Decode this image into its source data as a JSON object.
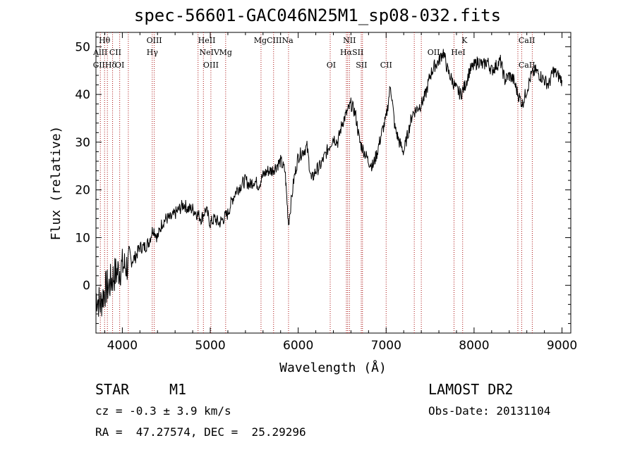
{
  "chart_data": {
    "type": "line",
    "title": "spec-56601-GAC046N25M1_sp08-032.fits",
    "xlabel": "Wavelength (Å)",
    "ylabel": "Flux (relative)",
    "xlim": [
      3700,
      9100
    ],
    "ylim": [
      -10,
      53
    ],
    "x_ticks": [
      4000,
      5000,
      6000,
      7000,
      8000,
      9000
    ],
    "y_ticks": [
      0,
      10,
      20,
      30,
      40,
      50
    ],
    "grid": false,
    "series": [
      {
        "x": [
          3700,
          3750,
          3800,
          3850,
          3900,
          3950,
          4000,
          4050,
          4100,
          4150,
          4200,
          4250,
          4300,
          4350,
          4400,
          4450,
          4500,
          4550,
          4600,
          4650,
          4700,
          4750,
          4800,
          4850,
          4900,
          4950,
          5000,
          5050,
          5100,
          5150,
          5200,
          5250,
          5300,
          5350,
          5400,
          5450,
          5500,
          5550,
          5600,
          5650,
          5700,
          5750,
          5800,
          5850,
          5890,
          5950,
          6000,
          6050,
          6100,
          6150,
          6200,
          6250,
          6300,
          6350,
          6400,
          6450,
          6500,
          6550,
          6600,
          6650,
          6700,
          6750,
          6800,
          6850,
          6900,
          6950,
          7000,
          7050,
          7100,
          7150,
          7200,
          7250,
          7300,
          7350,
          7400,
          7450,
          7500,
          7550,
          7600,
          7650,
          7700,
          7750,
          7800,
          7850,
          7900,
          7950,
          8000,
          8050,
          8100,
          8150,
          8200,
          8250,
          8300,
          8350,
          8400,
          8450,
          8500,
          8550,
          8600,
          8650,
          8700,
          8750,
          8800,
          8850,
          8900,
          8950,
          9000
        ],
        "y": [
          -2,
          -4,
          -1,
          0,
          2,
          3,
          4,
          4,
          5,
          6,
          8,
          8,
          9,
          12,
          10,
          13,
          14,
          14,
          15,
          16,
          17,
          16,
          16,
          15,
          14,
          16,
          13,
          14,
          13,
          14,
          15,
          18,
          20,
          21,
          22,
          21,
          22,
          21,
          23,
          24,
          24,
          25,
          26,
          24,
          13,
          22,
          27,
          28,
          29,
          22,
          24,
          25,
          27,
          29,
          31,
          30,
          34,
          36,
          38,
          36,
          30,
          28,
          26,
          25,
          28,
          32,
          35,
          42,
          33,
          30,
          28,
          32,
          36,
          37,
          38,
          40,
          44,
          46,
          47,
          49,
          45,
          43,
          41,
          40,
          42,
          45,
          46,
          47,
          46,
          47,
          45,
          46,
          47,
          43,
          44,
          43,
          40,
          38,
          41,
          44,
          45,
          44,
          43,
          42,
          45,
          44,
          43
        ]
      }
    ],
    "lines": [
      {
        "label": "Hθ",
        "x": 3798,
        "row": 1
      },
      {
        "label": "AlII",
        "x": 3750,
        "row": 2
      },
      {
        "label": "CII",
        "x": 3920,
        "row": 2
      },
      {
        "label": "OIII",
        "x": 4363,
        "row": 1
      },
      {
        "label": "Hγ",
        "x": 4341,
        "row": 2
      },
      {
        "label": "HeII",
        "x": 4960,
        "row": 1
      },
      {
        "label": "NeIV",
        "x": 4990,
        "row": 2
      },
      {
        "label": "Mg",
        "x": 5175,
        "row": 2
      },
      {
        "label": "MgCIIINa",
        "x": 5720,
        "row": 1
      },
      {
        "label": "NII",
        "x": 6583,
        "row": 1
      },
      {
        "label": "HαSII",
        "x": 6610,
        "row": 2
      },
      {
        "label": "K",
        "x": 7890,
        "row": 1
      },
      {
        "label": "CaII",
        "x": 8600,
        "row": 1
      },
      {
        "label": "CIIHδ",
        "x": 3800,
        "row": 3
      },
      {
        "label": "OI",
        "x": 3970,
        "row": 3
      },
      {
        "label": "OIII",
        "x": 5007,
        "row": 3
      },
      {
        "label": "OI",
        "x": 6375,
        "row": 3
      },
      {
        "label": "SII",
        "x": 6720,
        "row": 3
      },
      {
        "label": "CII",
        "x": 7000,
        "row": 3
      },
      {
        "label": "OII",
        "x": 7540,
        "row": 2
      },
      {
        "label": "HeI",
        "x": 7820,
        "row": 2
      },
      {
        "label": "CaII",
        "x": 8600,
        "row": 3
      }
    ],
    "line_x": [
      3750,
      3798,
      3830,
      3889,
      3970,
      4068,
      4340,
      4363,
      4861,
      4922,
      5007,
      5175,
      5577,
      5720,
      5890,
      6364,
      6548,
      6563,
      6583,
      6717,
      6731,
      7000,
      7320,
      7400,
      7772,
      7870,
      8498,
      8542,
      8662
    ]
  },
  "info": {
    "object_type": "STAR",
    "subclass": "M1",
    "survey": "LAMOST DR2",
    "cz": "cz = -0.3 ± 3.9 km/s",
    "obs_date": "Obs-Date: 20131104",
    "coords": "RA =  47.27574, DEC =  25.29296"
  }
}
